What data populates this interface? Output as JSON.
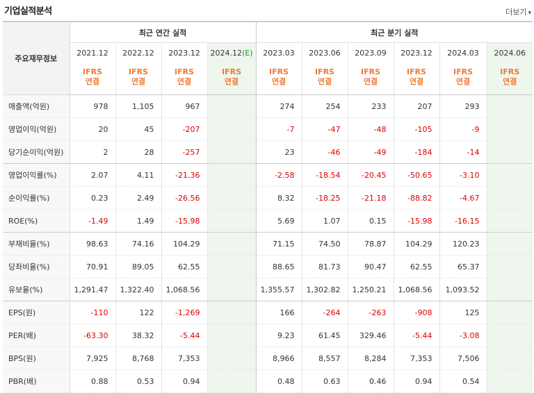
{
  "header": {
    "title": "기업실적분석",
    "more_label": "더보기",
    "more_arrow": "▾"
  },
  "table": {
    "row_header_label": "주요재무정보",
    "group_annual": "최근 연간 실적",
    "group_quarter": "최근 분기 실적",
    "periods": [
      "2021.12",
      "2022.12",
      "2023.12",
      "2024.12",
      "2023.03",
      "2023.06",
      "2023.09",
      "2023.12",
      "2024.03",
      "2024.06"
    ],
    "estimate_mark": "(E)",
    "ifrs_line1": "IFRS",
    "ifrs_line2": "연결",
    "rows": [
      {
        "label": "매출액(억원)",
        "values": [
          "978",
          "1,105",
          "967",
          "",
          "274",
          "254",
          "233",
          "207",
          "293",
          ""
        ]
      },
      {
        "label": "영업이익(억원)",
        "values": [
          "20",
          "45",
          "-207",
          "",
          "-7",
          "-47",
          "-48",
          "-105",
          "-9",
          ""
        ]
      },
      {
        "label": "당기순이익(억원)",
        "values": [
          "2",
          "28",
          "-257",
          "",
          "23",
          "-46",
          "-49",
          "-184",
          "-14",
          ""
        ]
      },
      {
        "label": "영업이익률(%)",
        "values": [
          "2.07",
          "4.11",
          "-21.36",
          "",
          "-2.58",
          "-18.54",
          "-20.45",
          "-50.65",
          "-3.10",
          ""
        ]
      },
      {
        "label": "순이익률(%)",
        "values": [
          "0.23",
          "2.49",
          "-26.56",
          "",
          "8.32",
          "-18.25",
          "-21.18",
          "-88.82",
          "-4.67",
          ""
        ]
      },
      {
        "label": "ROE(%)",
        "values": [
          "-1.49",
          "1.49",
          "-15.98",
          "",
          "5.69",
          "1.07",
          "0.15",
          "-15.98",
          "-16.15",
          ""
        ]
      },
      {
        "label": "부채비율(%)",
        "values": [
          "98.63",
          "74.16",
          "104.29",
          "",
          "71.15",
          "74.50",
          "78.87",
          "104.29",
          "120.23",
          ""
        ]
      },
      {
        "label": "당좌비율(%)",
        "values": [
          "70.91",
          "89.05",
          "62.55",
          "",
          "88.65",
          "81.73",
          "90.47",
          "62.55",
          "65.37",
          ""
        ]
      },
      {
        "label": "유보율(%)",
        "values": [
          "1,291.47",
          "1,322.40",
          "1,068.56",
          "",
          "1,355.57",
          "1,302.82",
          "1,250.21",
          "1,068.56",
          "1,093.52",
          ""
        ]
      },
      {
        "label": "EPS(원)",
        "values": [
          "-110",
          "122",
          "-1,269",
          "",
          "166",
          "-264",
          "-263",
          "-908",
          "125",
          ""
        ]
      },
      {
        "label": "PER(배)",
        "values": [
          "-63.30",
          "38.32",
          "-5.44",
          "",
          "9.23",
          "61.45",
          "329.46",
          "-5.44",
          "-3.08",
          ""
        ]
      },
      {
        "label": "BPS(원)",
        "values": [
          "7,925",
          "8,768",
          "7,353",
          "",
          "8,966",
          "8,557",
          "8,284",
          "7,353",
          "7,506",
          ""
        ]
      },
      {
        "label": "PBR(배)",
        "values": [
          "0.88",
          "0.53",
          "0.94",
          "",
          "0.48",
          "0.63",
          "0.46",
          "0.94",
          "0.54",
          ""
        ]
      }
    ],
    "colors": {
      "negative": "#d90000",
      "ifrs": "#f07a36",
      "estimate_bg": "#eef6ee"
    }
  }
}
